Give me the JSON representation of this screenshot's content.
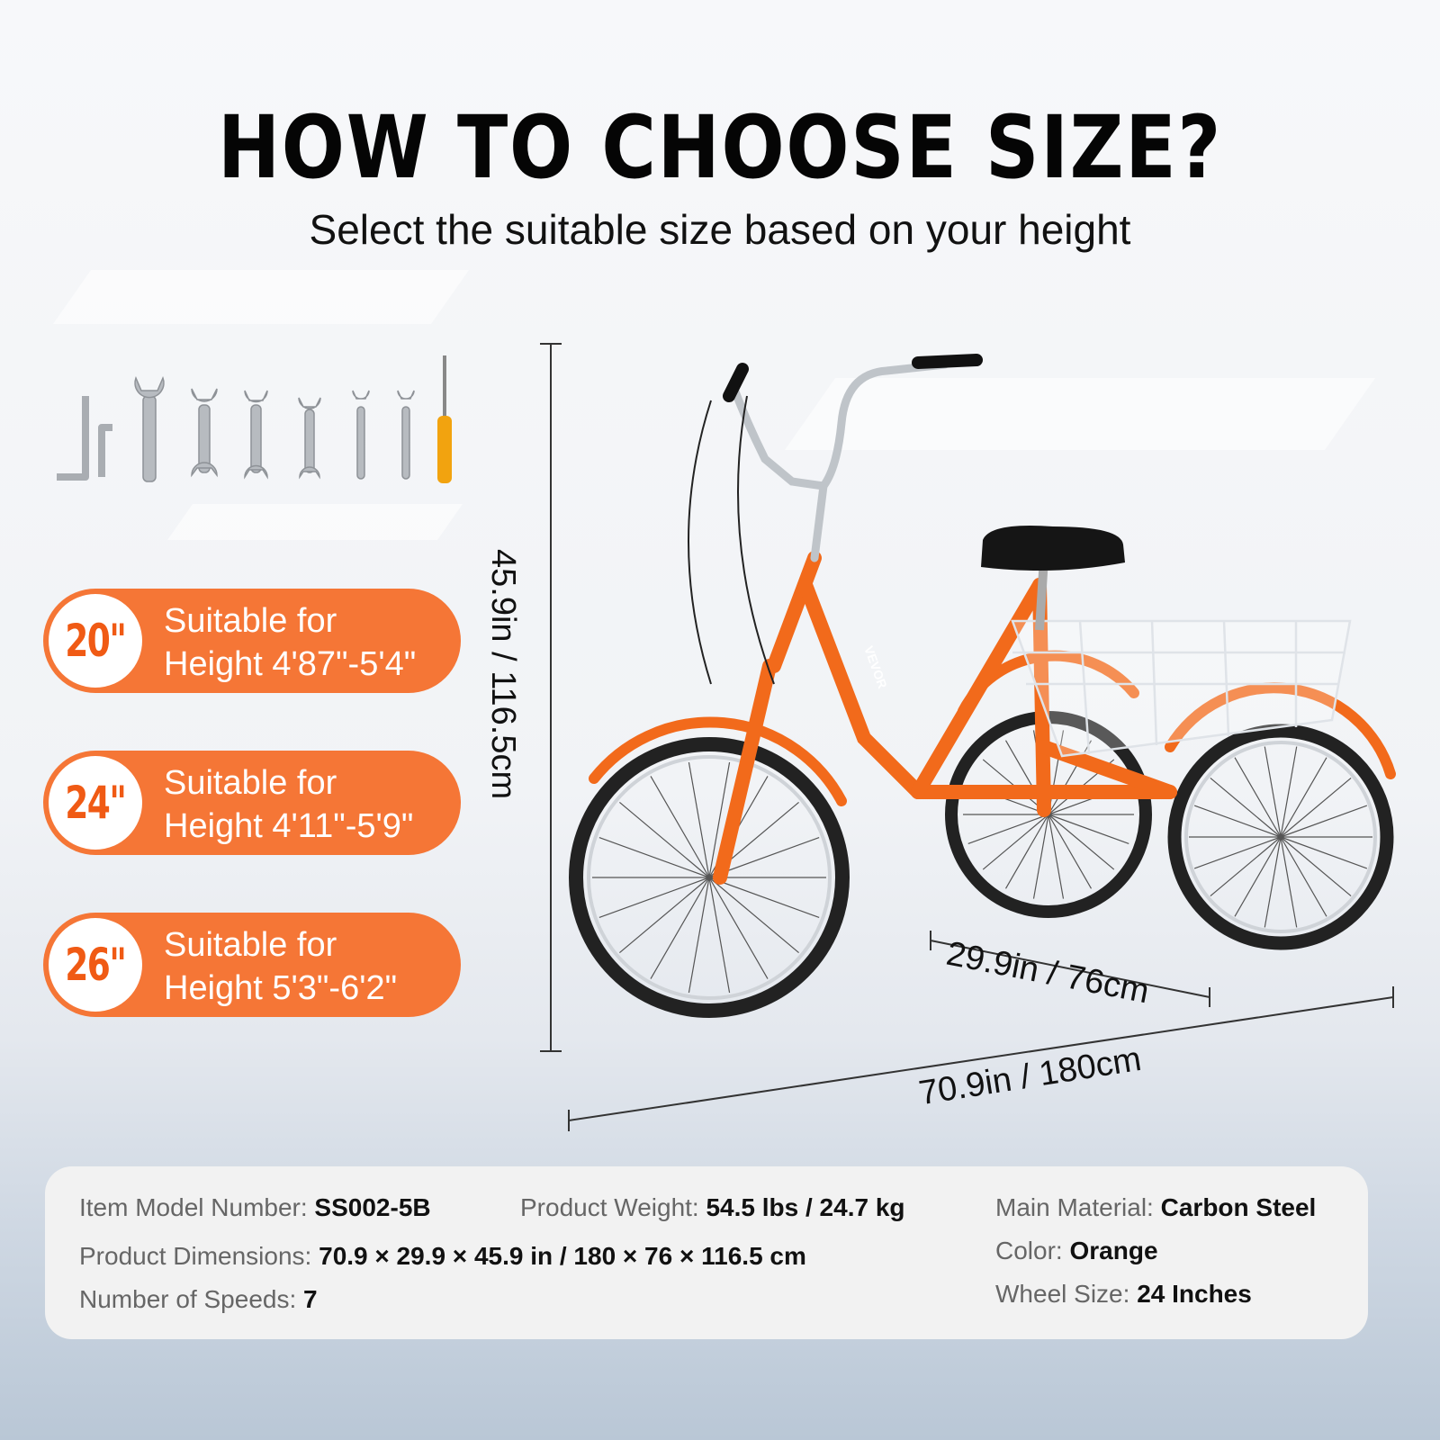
{
  "header": {
    "title": "HOW TO CHOOSE SIZE?",
    "subtitle": "Select the suitable size based on your height"
  },
  "sizes": [
    {
      "size": "20\"",
      "line1": "Suitable for",
      "line2": "Height 4'87\"-5'4\""
    },
    {
      "size": "24\"",
      "line1": "Suitable for",
      "line2": "Height 4'11\"-5'9\""
    },
    {
      "size": "26\"",
      "line1": "Suitable for",
      "line2": "Height 5'3\"-6'2\""
    }
  ],
  "dimensions": {
    "height": "45.9in / 116.5cm",
    "width": "29.9in / 76cm",
    "length": "70.9in / 180cm"
  },
  "specs": {
    "model_label": "Item Model Number:",
    "model_value": "SS002-5B",
    "weight_label": "Product Weight:",
    "weight_value": "54.5 lbs / 24.7 kg",
    "material_label": "Main Material:",
    "material_value": "Carbon Steel",
    "dimensions_label": "Product Dimensions:",
    "dimensions_value": "70.9 × 29.9 × 45.9 in / 180 × 76 × 116.5 cm",
    "color_label": "Color:",
    "color_value": "Orange",
    "speeds_label": "Number of Speeds:",
    "speeds_value": "7",
    "wheel_label": "Wheel Size:",
    "wheel_value": "24 Inches"
  },
  "colors": {
    "accent": "#f57636",
    "frame": "#f26a1b",
    "text": "#111111"
  },
  "brand": "VEVOR"
}
